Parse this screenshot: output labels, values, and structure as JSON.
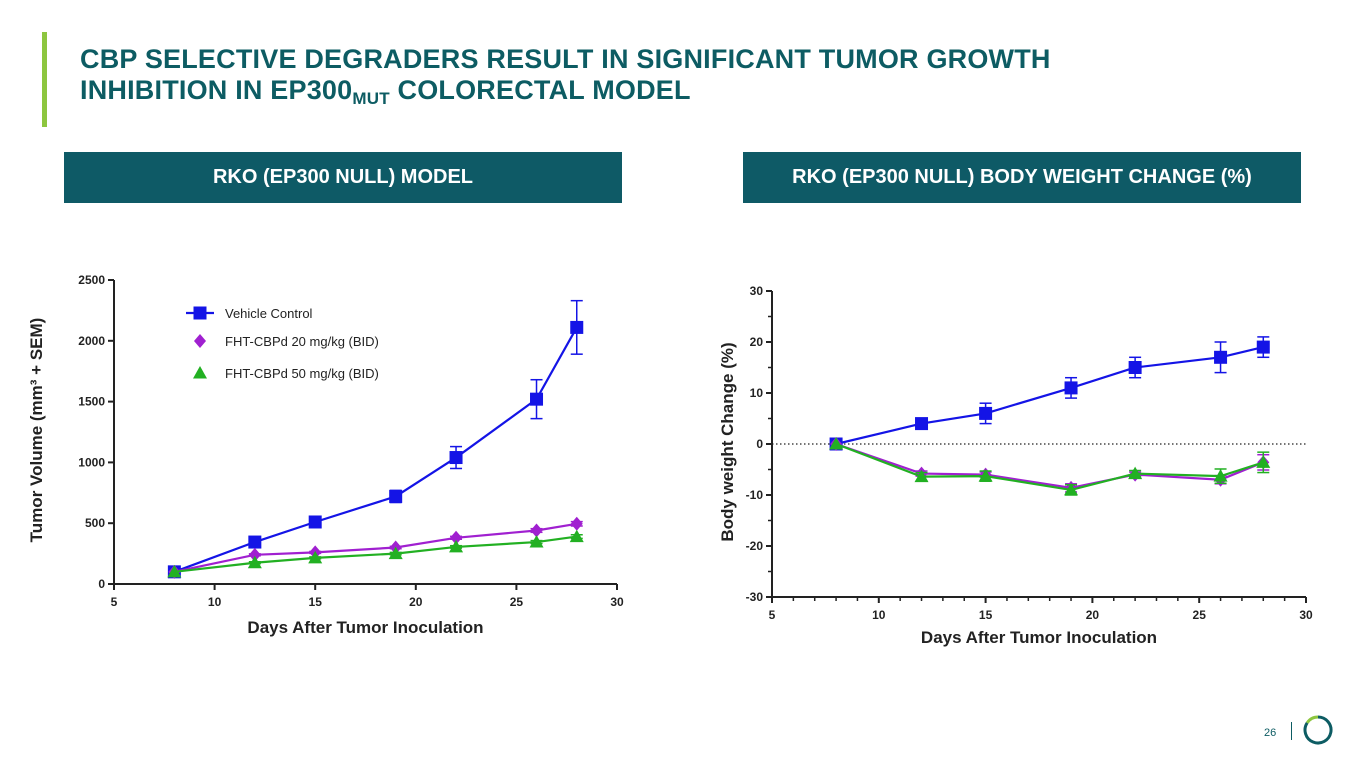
{
  "slide": {
    "title_line1": "CBP SELECTIVE DEGRADERS RESULT IN SIGNIFICANT TUMOR GROWTH",
    "title_line2_pre": "INHIBITION IN EP300",
    "title_line2_sub": "MUT",
    "title_line2_post": " COLORECTAL MODEL",
    "page_number": "26",
    "colors": {
      "title": "#0d5c63",
      "header_bg": "#0e5a66",
      "accent": "#8dc63f"
    }
  },
  "headers": {
    "left": "RKO (EP300 NULL) MODEL",
    "right": "RKO (EP300 NULL) BODY WEIGHT CHANGE (%)"
  },
  "chart_data": [
    {
      "type": "line",
      "title": "RKO (EP300 NULL) MODEL",
      "xlabel": "Days After Tumor Inoculation",
      "ylabel": "Tumor Volume (mm³ + SEM)",
      "xlim": [
        5,
        30
      ],
      "ylim": [
        0,
        2500
      ],
      "xticks": [
        5,
        10,
        15,
        20,
        25,
        30
      ],
      "yticks": [
        0,
        500,
        1000,
        1500,
        2000,
        2500
      ],
      "grid": false,
      "legend": "top-left",
      "series": [
        {
          "name": "Vehicle Control",
          "marker": "square",
          "color": "#1414e6",
          "x": [
            8,
            12,
            15,
            19,
            22,
            26,
            28
          ],
          "y": [
            100,
            345,
            510,
            720,
            1040,
            1520,
            2110
          ],
          "err": [
            0,
            15,
            25,
            50,
            90,
            160,
            220
          ]
        },
        {
          "name": "FHT-CBPd 20 mg/kg (BID)",
          "marker": "diamond",
          "color": "#a020d0",
          "x": [
            8,
            12,
            15,
            19,
            22,
            26,
            28
          ],
          "y": [
            100,
            240,
            260,
            300,
            380,
            440,
            495
          ],
          "err": [
            0,
            8,
            8,
            10,
            12,
            15,
            18
          ]
        },
        {
          "name": "FHT-CBPd 50 mg/kg (BID)",
          "marker": "triangle",
          "color": "#22b022",
          "x": [
            8,
            12,
            15,
            19,
            22,
            26,
            28
          ],
          "y": [
            100,
            175,
            215,
            250,
            305,
            345,
            390
          ],
          "err": [
            0,
            8,
            8,
            10,
            10,
            12,
            15
          ]
        }
      ]
    },
    {
      "type": "line",
      "title": "RKO (EP300 NULL) BODY WEIGHT CHANGE (%)",
      "xlabel": "Days After Tumor Inoculation",
      "ylabel": "Body weight Change (%)",
      "xlim": [
        5,
        30
      ],
      "ylim": [
        -30,
        30
      ],
      "xticks": [
        5,
        10,
        15,
        20,
        25,
        30
      ],
      "yticks": [
        -30,
        -20,
        -10,
        0,
        10,
        20,
        30
      ],
      "reference_line": 0,
      "grid": false,
      "series": [
        {
          "name": "Vehicle Control",
          "marker": "square",
          "color": "#1414e6",
          "x": [
            8,
            12,
            15,
            19,
            22,
            26,
            28
          ],
          "y": [
            0,
            4,
            6,
            11,
            15,
            17,
            19
          ],
          "err": [
            0,
            1,
            2,
            2,
            2,
            3,
            2
          ]
        },
        {
          "name": "FHT-CBPd 20 mg/kg (BID)",
          "marker": "diamond",
          "color": "#a020d0",
          "x": [
            8,
            12,
            15,
            19,
            22,
            26,
            28
          ],
          "y": [
            0,
            -5.8,
            -6,
            -8.6,
            -6,
            -7,
            -3.6
          ],
          "err": [
            0,
            0.5,
            0.5,
            0.8,
            0.5,
            0.8,
            1.5
          ]
        },
        {
          "name": "FHT-CBPd 50 mg/kg (BID)",
          "marker": "triangle",
          "color": "#22b022",
          "x": [
            8,
            12,
            15,
            19,
            22,
            26,
            28
          ],
          "y": [
            0,
            -6.4,
            -6.3,
            -9,
            -5.8,
            -6.3,
            -3.6
          ],
          "err": [
            0,
            0.8,
            1,
            1,
            0.6,
            1.4,
            2
          ]
        }
      ]
    }
  ]
}
